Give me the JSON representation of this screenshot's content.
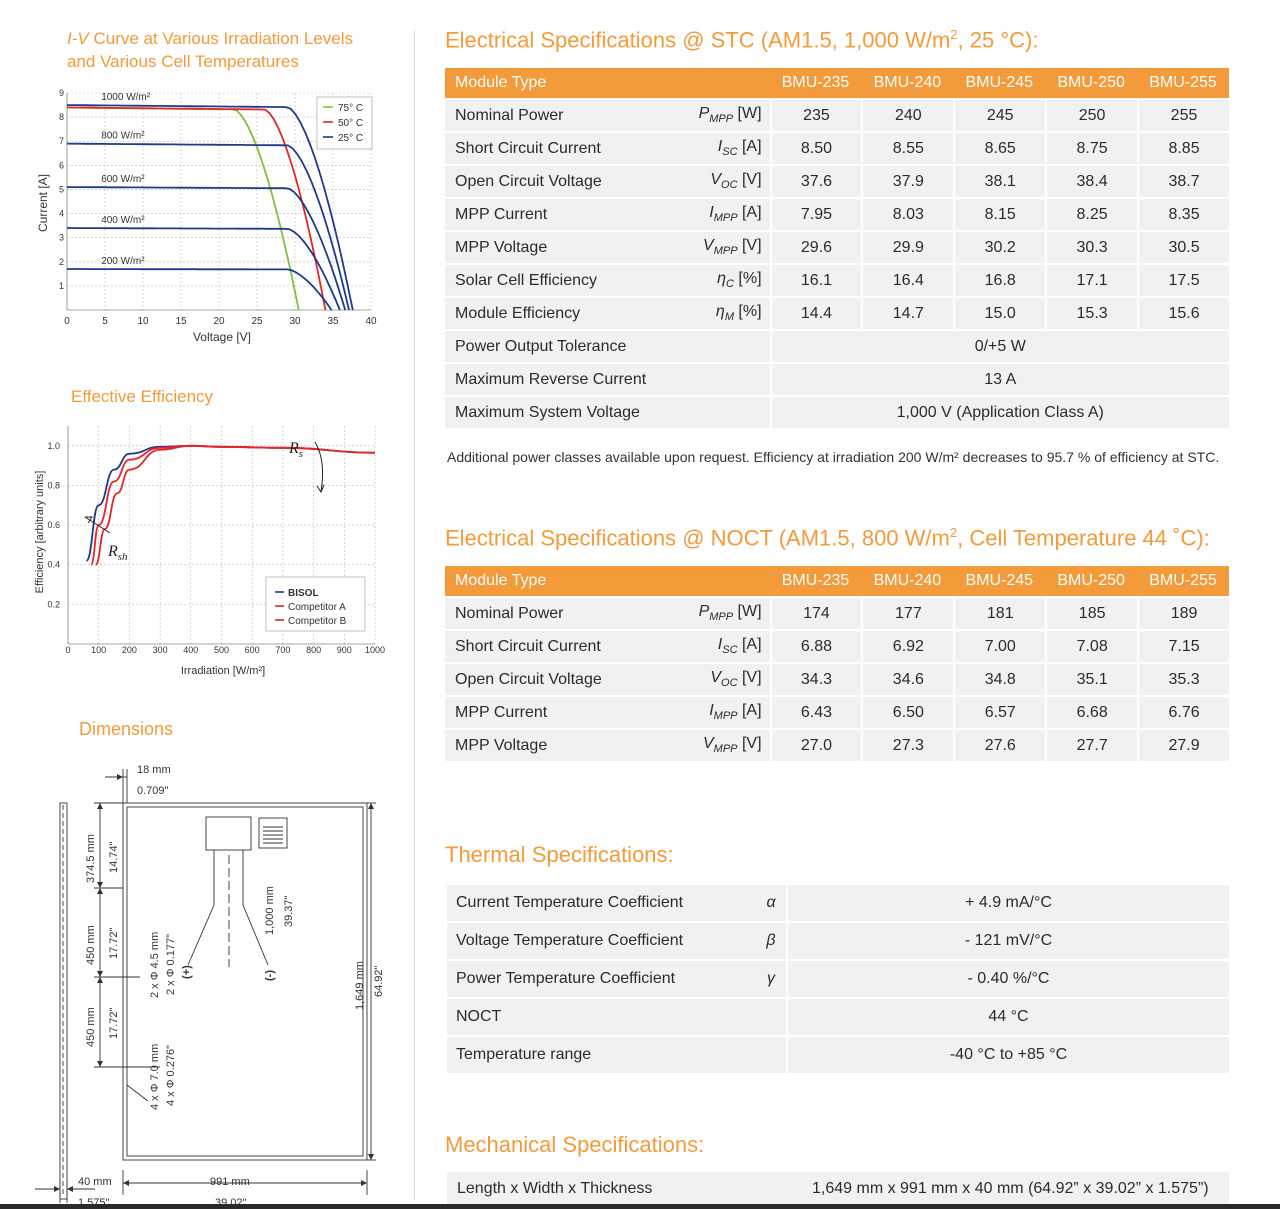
{
  "iv_chart": {
    "title_italic": "I-V",
    "title_rest": " Curve at Various Irradiation Levels",
    "title_line2": "and Various Cell Temperatures",
    "xlabel": "Voltage [V]",
    "ylabel": "Current [A]",
    "legend": [
      "75° C",
      "50° C",
      "25° C"
    ],
    "irradiance_labels": [
      "1000 W/m²",
      "800 W/m²",
      "600 W/m²",
      "400 W/m²",
      "200 W/m²"
    ],
    "colors": {
      "t75": "#7cc242",
      "t50": "#e3262a",
      "t25": "#1f3a8a"
    }
  },
  "eff_chart": {
    "title": "Effective Efficiency",
    "xlabel": "Irradiation [W/m²]",
    "ylabel": "Efficiency [arbitrary units]",
    "rs_label": "R",
    "rs_sub": "s",
    "rsh_label": "R",
    "rsh_sub": "sh",
    "legend": [
      "BISOL",
      "Competitor A",
      "Competitor B"
    ],
    "colors": {
      "bisol": "#1f3a8a",
      "a": "#e3262a",
      "b": "#e3262a"
    }
  },
  "chart_data": [
    {
      "type": "line",
      "title": "I-V Curve at Various Irradiation Levels and Various Cell Temperatures",
      "xlabel": "Voltage [V]",
      "ylabel": "Current [A]",
      "xlim": [
        0,
        40
      ],
      "ylim": [
        0,
        9
      ],
      "xticks": [
        0,
        5,
        10,
        15,
        20,
        25,
        30,
        35,
        40
      ],
      "yticks": [
        1,
        2,
        3,
        4,
        5,
        6,
        7,
        8,
        9
      ],
      "grid": true,
      "legend_position": "top-right",
      "series": [
        {
          "name": "75° C",
          "curves": [
            {
              "irradiance": "1000 W/m²",
              "isc": 8.4,
              "voc": 30.5,
              "knee": 22
            }
          ]
        },
        {
          "name": "50° C",
          "curves": [
            {
              "irradiance": "1000 W/m²",
              "isc": 8.4,
              "voc": 34.0,
              "knee": 26
            }
          ]
        },
        {
          "name": "25° C",
          "curves": [
            {
              "irradiance": "1000 W/m²",
              "isc": 8.5,
              "voc": 37.6,
              "knee": 29
            },
            {
              "irradiance": "800 W/m²",
              "isc": 6.9,
              "voc": 37.1,
              "knee": 29
            },
            {
              "irradiance": "600 W/m²",
              "isc": 5.1,
              "voc": 36.6,
              "knee": 29
            },
            {
              "irradiance": "400 W/m²",
              "isc": 3.4,
              "voc": 35.9,
              "knee": 29
            },
            {
              "irradiance": "200 W/m²",
              "isc": 1.7,
              "voc": 34.8,
              "knee": 29
            }
          ]
        }
      ]
    },
    {
      "type": "line",
      "title": "Effective Efficiency",
      "xlabel": "Irradiation [W/m²]",
      "ylabel": "Efficiency [arbitrary units]",
      "xlim": [
        0,
        1000
      ],
      "ylim": [
        0,
        1.1
      ],
      "xticks": [
        0,
        100,
        200,
        300,
        400,
        500,
        600,
        700,
        800,
        900,
        1000
      ],
      "yticks": [
        0.2,
        0.4,
        0.6,
        0.8,
        1.0
      ],
      "grid": true,
      "legend_position": "bottom-right",
      "series": [
        {
          "name": "BISOL",
          "x": [
            60,
            100,
            150,
            200,
            300,
            400,
            500,
            700,
            1000
          ],
          "y": [
            0.42,
            0.7,
            0.88,
            0.96,
            0.995,
            1.0,
            0.995,
            0.99,
            0.965
          ]
        },
        {
          "name": "Competitor A",
          "x": [
            75,
            100,
            150,
            200,
            300,
            400,
            500,
            700,
            1000
          ],
          "y": [
            0.4,
            0.6,
            0.82,
            0.93,
            0.99,
            1.0,
            0.995,
            0.99,
            0.965
          ]
        },
        {
          "name": "Competitor B",
          "x": [
            90,
            120,
            160,
            200,
            300,
            400,
            500,
            700,
            1000
          ],
          "y": [
            0.4,
            0.58,
            0.76,
            0.88,
            0.98,
            1.0,
            0.995,
            0.99,
            0.965
          ]
        }
      ]
    }
  ],
  "dimensions": {
    "title": "Dimensions",
    "frame_mm": "18 mm",
    "frame_in": "0.709\"",
    "top_mm": "374.5 mm",
    "top_in": "14.74\"",
    "mid1_mm": "450 mm",
    "mid1_in": "17.72\"",
    "mid2_mm": "450 mm",
    "mid2_in": "17.72\"",
    "cable_mm": "1,000 mm",
    "cable_in": "39.37\"",
    "holes_small_mm": "2 x Φ 4.5 mm",
    "holes_small_in": "2 x Φ 0.177\"",
    "holes_big_mm": "4 x Φ 7.0 mm",
    "holes_big_in": "4 x Φ 0.276\"",
    "plus": "(+)",
    "minus": "(-)",
    "length_mm": "1,649 mm",
    "length_in": "64.92\"",
    "thick_mm": "40 mm",
    "thick_in": "1.575\"",
    "width_mm": "991 mm",
    "width_in": "39.02\""
  },
  "stc": {
    "title_pre": "Electrical Specifications @ STC (AM1.5, 1,000 W/m",
    "title_sup": "2",
    "title_post": ", 25 °C):",
    "header": [
      "Module Type",
      "BMU-235",
      "BMU-240",
      "BMU-245",
      "BMU-250",
      "BMU-255"
    ],
    "rows": [
      {
        "name": "Nominal Power",
        "sym": "P",
        "sub": "MPP",
        "unit": " [W]",
        "values": [
          "235",
          "240",
          "245",
          "250",
          "255"
        ]
      },
      {
        "name": "Short Circuit Current",
        "sym": "I",
        "sub": "SC",
        "unit": " [A]",
        "values": [
          "8.50",
          "8.55",
          "8.65",
          "8.75",
          "8.85"
        ]
      },
      {
        "name": "Open Circuit Voltage",
        "sym": "V",
        "sub": "OC",
        "unit": " [V]",
        "values": [
          "37.6",
          "37.9",
          "38.1",
          "38.4",
          "38.7"
        ]
      },
      {
        "name": "MPP Current",
        "sym": "I",
        "sub": "MPP",
        "unit": " [A]",
        "values": [
          "7.95",
          "8.03",
          "8.15",
          "8.25",
          "8.35"
        ]
      },
      {
        "name": "MPP Voltage",
        "sym": "V",
        "sub": "MPP",
        "unit": " [V]",
        "values": [
          "29.6",
          "29.9",
          "30.2",
          "30.3",
          "30.5"
        ]
      },
      {
        "name": "Solar Cell Efficiency",
        "sym": "η",
        "sub": "C",
        "unit": " [%]",
        "values": [
          "16.1",
          "16.4",
          "16.8",
          "17.1",
          "17.5"
        ]
      },
      {
        "name": "Module Efficiency",
        "sym": "η",
        "sub": "M",
        "unit": " [%]",
        "values": [
          "14.4",
          "14.7",
          "15.0",
          "15.3",
          "15.6"
        ]
      }
    ],
    "span_rows": [
      {
        "name": "Power Output Tolerance",
        "value": "0/+5 W"
      },
      {
        "name": "Maximum Reverse Current",
        "value": "13 A"
      },
      {
        "name": "Maximum System Voltage",
        "value": "1,000 V (Application Class A)"
      }
    ],
    "note": "Additional power classes available upon request. Efficiency at irradiation 200 W/m² decreases to 95.7 % of efficiency at STC."
  },
  "noct": {
    "title_pre": "Electrical Specifications @ NOCT (AM1.5, 800 W/m",
    "title_sup": "2",
    "title_post": ", Cell Temperature 44 ˚C):",
    "header": [
      "Module Type",
      "BMU-235",
      "BMU-240",
      "BMU-245",
      "BMU-250",
      "BMU-255"
    ],
    "rows": [
      {
        "name": "Nominal  Power",
        "sym": "P",
        "sub": "MPP",
        "unit": " [W]",
        "values": [
          "174",
          "177",
          "181",
          "185",
          "189"
        ]
      },
      {
        "name": "Short Circuit Current",
        "sym": "I",
        "sub": "SC",
        "unit": " [A]",
        "values": [
          "6.88",
          "6.92",
          "7.00",
          "7.08",
          "7.15"
        ]
      },
      {
        "name": "Open Circuit Voltage",
        "sym": "V",
        "sub": "OC",
        "unit": " [V]",
        "values": [
          "34.3",
          "34.6",
          "34.8",
          "35.1",
          "35.3"
        ]
      },
      {
        "name": "MPP Current",
        "sym": "I",
        "sub": "MPP",
        "unit": " [A]",
        "values": [
          "6.43",
          "6.50",
          "6.57",
          "6.68",
          "6.76"
        ]
      },
      {
        "name": "MPP Voltage",
        "sym": "V",
        "sub": "MPP",
        "unit": " [V]",
        "values": [
          "27.0",
          "27.3",
          "27.6",
          "27.7",
          "27.9"
        ]
      }
    ]
  },
  "thermal": {
    "title": "Thermal Specifications:",
    "rows": [
      {
        "name": "Current Temperature Coefficient",
        "sym": "α",
        "value": "+ 4.9 mA/°C"
      },
      {
        "name": "Voltage Temperature Coefficient",
        "sym": "β",
        "value": "- 121 mV/°C"
      },
      {
        "name": "Power Temperature Coefficient",
        "sym": "γ",
        "value": "- 0.40 %/°C"
      },
      {
        "name": "NOCT",
        "sym": "",
        "value": "44 °C"
      },
      {
        "name": "Temperature range",
        "sym": "",
        "value": "-40 °C to +85 °C"
      }
    ]
  },
  "mechanical": {
    "title": "Mechanical Specifications:",
    "row_name": "Length x Width x Thickness",
    "row_value": "1,649 mm x 991 mm x 40 mm (64.92” x 39.02” x 1.575”)"
  }
}
